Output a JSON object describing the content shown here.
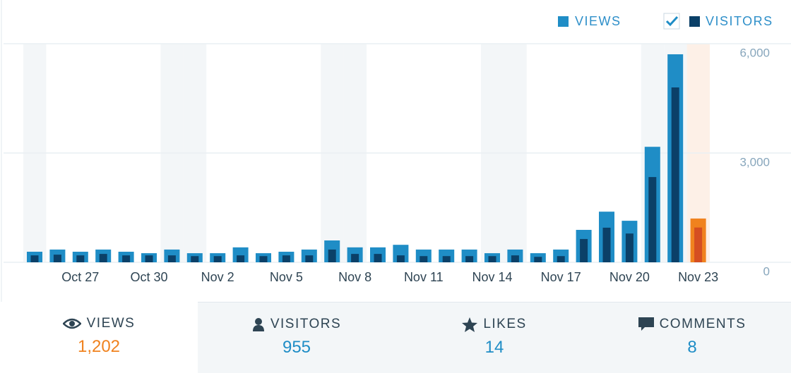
{
  "chart_data": {
    "type": "bar",
    "categories": [
      null,
      null,
      "Oct 27",
      null,
      null,
      "Oct 30",
      null,
      null,
      "Nov 2",
      null,
      null,
      "Nov 5",
      null,
      null,
      "Nov 8",
      null,
      null,
      "Nov 11",
      null,
      null,
      "Nov 14",
      null,
      null,
      "Nov 17",
      null,
      null,
      "Nov 20",
      null,
      null,
      "Nov 23"
    ],
    "series": [
      {
        "name": "VIEWS",
        "color": "#1f8dc6",
        "selected_color": "#f0821e",
        "values": [
          290,
          350,
          290,
          350,
          290,
          250,
          350,
          250,
          250,
          410,
          250,
          290,
          350,
          600,
          410,
          410,
          480,
          350,
          350,
          350,
          250,
          350,
          250,
          350,
          890,
          1390,
          1140,
          3170,
          5710,
          1202
        ]
      },
      {
        "name": "VISITORS",
        "color": "#0b4068",
        "selected_color": "#d54e21",
        "values": [
          190,
          210,
          190,
          230,
          190,
          190,
          190,
          170,
          170,
          190,
          170,
          190,
          190,
          350,
          230,
          230,
          190,
          170,
          170,
          170,
          170,
          190,
          150,
          170,
          640,
          950,
          790,
          2340,
          4800,
          955
        ]
      }
    ],
    "selected": "Nov 23",
    "ylim": [
      0,
      6000
    ],
    "yticks": [
      0,
      {
        "value": 3000,
        "label": "3,000"
      },
      {
        "value": 6000,
        "label": "6,000"
      }
    ],
    "grid": true
  },
  "summary": [
    {
      "label": "VIEWS",
      "value": "1,202"
    },
    {
      "label": "VISITORS",
      "value": "955"
    },
    {
      "label": "LIKES",
      "value": "14"
    },
    {
      "label": "COMMENTS",
      "value": "8"
    }
  ]
}
